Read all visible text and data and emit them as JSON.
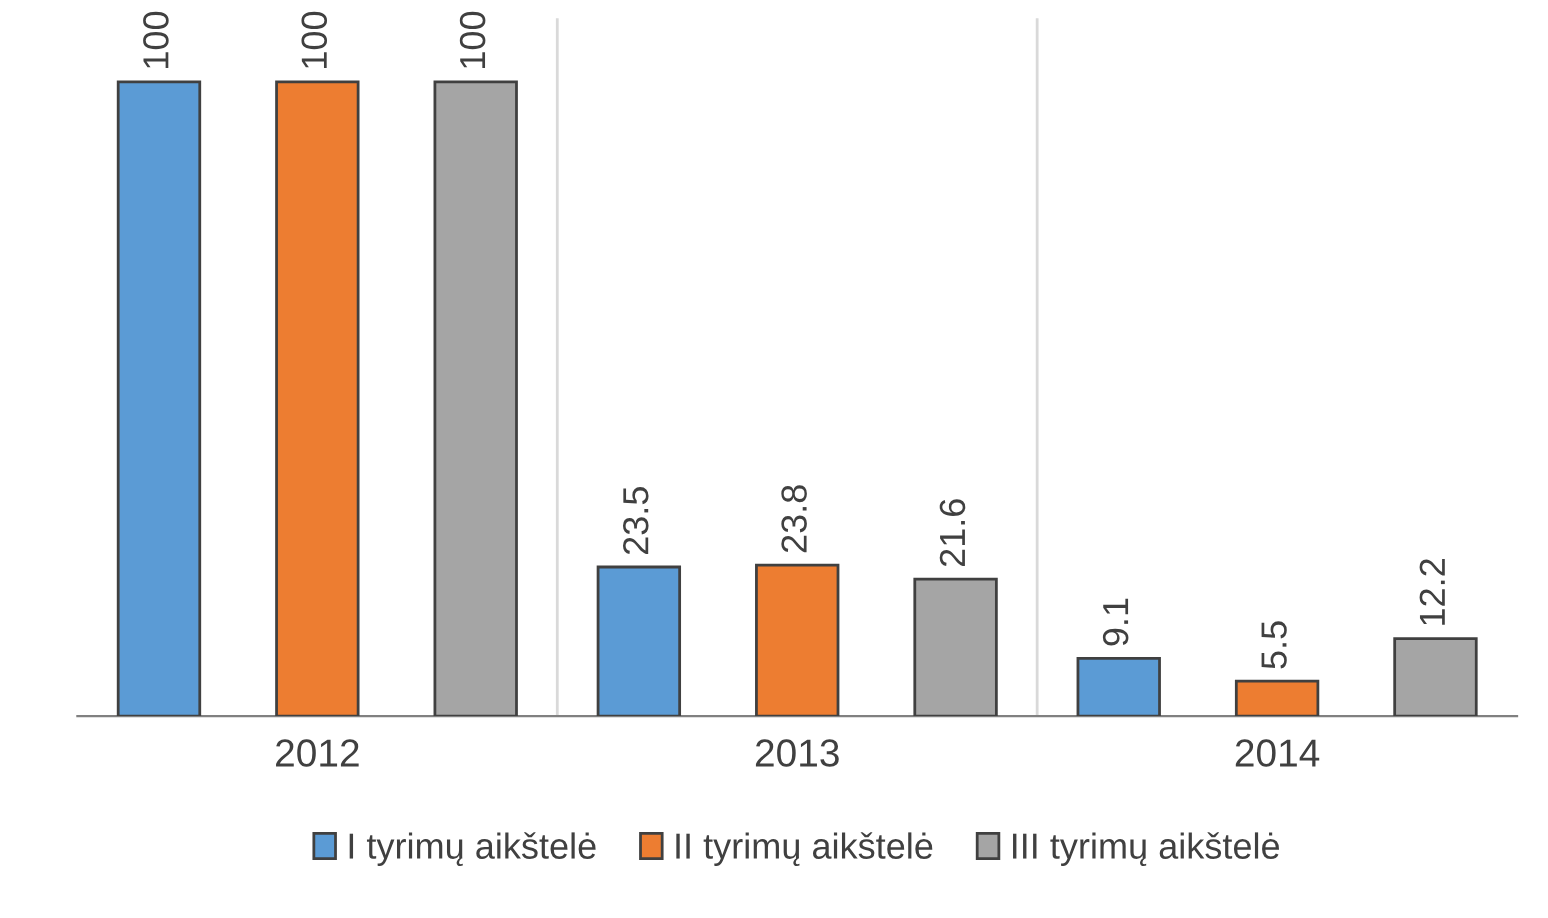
{
  "chart_data": {
    "type": "bar",
    "categories": [
      "2012",
      "2013",
      "2014"
    ],
    "series": [
      {
        "name": "I tyrimų aikštelė",
        "color": "#5b9bd5",
        "values": [
          100,
          23.5,
          9.1
        ]
      },
      {
        "name": "II tyrimų aikštelė",
        "color": "#ed7d31",
        "values": [
          100,
          23.8,
          5.5
        ]
      },
      {
        "name": "III tyrimų aikštelė",
        "color": "#a5a5a5",
        "values": [
          100,
          21.6,
          12.2
        ]
      }
    ],
    "data_labels": true,
    "grid": "x",
    "legend": "bottom",
    "tick_labels": "x"
  }
}
